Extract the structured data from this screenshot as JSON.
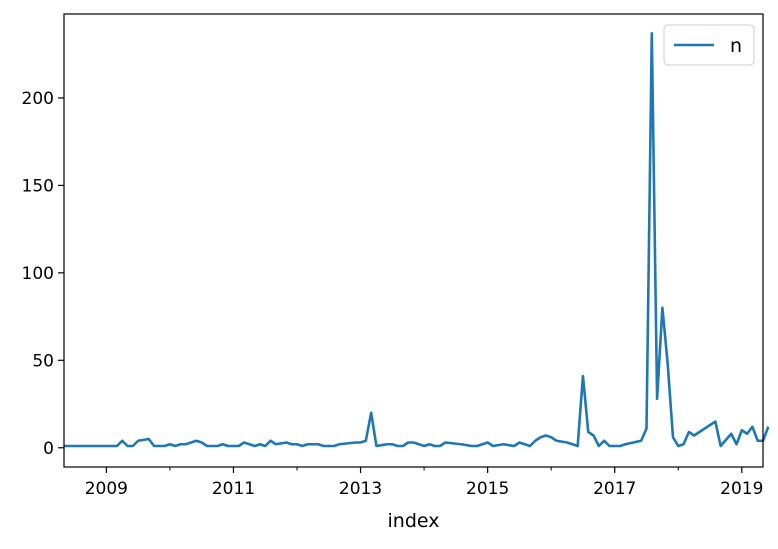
{
  "chart_data": {
    "type": "line",
    "xlabel": "index",
    "ylabel": "",
    "x_ticks": [
      "2009",
      "2011",
      "2013",
      "2015",
      "2017",
      "2019"
    ],
    "y_ticks": [
      "0",
      "50",
      "100",
      "150",
      "200"
    ],
    "xlim": [
      "2008-05",
      "2019-05"
    ],
    "ylim": [
      -11,
      248
    ],
    "legend": {
      "placement": "top-right"
    },
    "grid": false,
    "colors": {
      "series": "#1f77b4"
    },
    "series": [
      {
        "name": "n",
        "points": [
          [
            "2008-05",
            1
          ],
          [
            "2009-03",
            1
          ],
          [
            "2009-04",
            4
          ],
          [
            "2009-05",
            1
          ],
          [
            "2009-06",
            1
          ],
          [
            "2009-07",
            4
          ],
          [
            "2009-09",
            5
          ],
          [
            "2009-10",
            1
          ],
          [
            "2009-12",
            1
          ],
          [
            "2010-01",
            2
          ],
          [
            "2010-02",
            1
          ],
          [
            "2010-03",
            2
          ],
          [
            "2010-04",
            2
          ],
          [
            "2010-06",
            4
          ],
          [
            "2010-07",
            3
          ],
          [
            "2010-08",
            1
          ],
          [
            "2010-10",
            1
          ],
          [
            "2010-11",
            2
          ],
          [
            "2010-12",
            1
          ],
          [
            "2011-02",
            1
          ],
          [
            "2011-03",
            3
          ],
          [
            "2011-05",
            1
          ],
          [
            "2011-06",
            2
          ],
          [
            "2011-07",
            1
          ],
          [
            "2011-08",
            4
          ],
          [
            "2011-09",
            2
          ],
          [
            "2011-11",
            3
          ],
          [
            "2011-12",
            2
          ],
          [
            "2012-01",
            2
          ],
          [
            "2012-02",
            1
          ],
          [
            "2012-03",
            2
          ],
          [
            "2012-05",
            2
          ],
          [
            "2012-06",
            1
          ],
          [
            "2012-08",
            1
          ],
          [
            "2012-09",
            2
          ],
          [
            "2012-12",
            3
          ],
          [
            "2013-01",
            3
          ],
          [
            "2013-02",
            4
          ],
          [
            "2013-03",
            20
          ],
          [
            "2013-04",
            1
          ],
          [
            "2013-06",
            2
          ],
          [
            "2013-07",
            2
          ],
          [
            "2013-08",
            1
          ],
          [
            "2013-09",
            1
          ],
          [
            "2013-10",
            3
          ],
          [
            "2013-11",
            3
          ],
          [
            "2014-01",
            1
          ],
          [
            "2014-02",
            2
          ],
          [
            "2014-03",
            1
          ],
          [
            "2014-04",
            1
          ],
          [
            "2014-05",
            3
          ],
          [
            "2014-08",
            2
          ],
          [
            "2014-10",
            1
          ],
          [
            "2014-11",
            1
          ],
          [
            "2015-01",
            3
          ],
          [
            "2015-02",
            1
          ],
          [
            "2015-04",
            2
          ],
          [
            "2015-06",
            1
          ],
          [
            "2015-07",
            3
          ],
          [
            "2015-09",
            1
          ],
          [
            "2015-10",
            4
          ],
          [
            "2015-11",
            6
          ],
          [
            "2015-12",
            7
          ],
          [
            "2016-01",
            6
          ],
          [
            "2016-02",
            4
          ],
          [
            "2016-04",
            3
          ],
          [
            "2016-06",
            1
          ],
          [
            "2016-07",
            41
          ],
          [
            "2016-08",
            9
          ],
          [
            "2016-09",
            7
          ],
          [
            "2016-10",
            1
          ],
          [
            "2016-11",
            4
          ],
          [
            "2016-12",
            1
          ],
          [
            "2017-02",
            1
          ],
          [
            "2017-03",
            2
          ],
          [
            "2017-06",
            4
          ],
          [
            "2017-07",
            11
          ],
          [
            "2017-08",
            237
          ],
          [
            "2017-09",
            28
          ],
          [
            "2017-10",
            80
          ],
          [
            "2017-11",
            48
          ],
          [
            "2017-12",
            6
          ],
          [
            "2018-01",
            1
          ],
          [
            "2018-02",
            2
          ],
          [
            "2018-03",
            9
          ],
          [
            "2018-04",
            7
          ],
          [
            "2018-05",
            9
          ],
          [
            "2018-08",
            15
          ],
          [
            "2018-09",
            1
          ],
          [
            "2018-11",
            8
          ],
          [
            "2018-12",
            2
          ],
          [
            "2019-01",
            10
          ],
          [
            "2019-02",
            8
          ],
          [
            "2019-03",
            12
          ],
          [
            "2019-04",
            4
          ],
          [
            "2019-05",
            4
          ],
          [
            "2019-06",
            12
          ]
        ]
      }
    ]
  }
}
